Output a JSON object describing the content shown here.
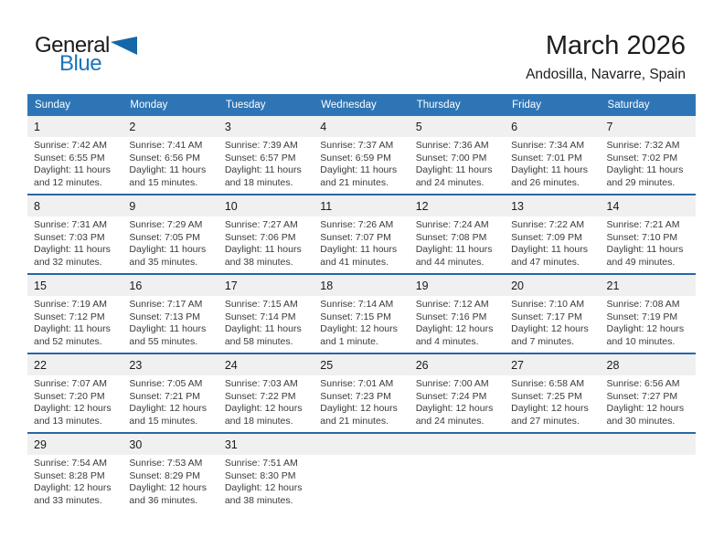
{
  "logo": {
    "general": "General",
    "blue": "Blue"
  },
  "header": {
    "title": "March 2026",
    "subtitle": "Andosilla, Navarre, Spain"
  },
  "colors": {
    "header_bar_blue": "#2e75b6",
    "week_separator_blue": "#2767a8",
    "day_band_gray": "#f0f0f0",
    "logo_blue": "#1b75bc",
    "logo_triangle_blue": "#1467a8"
  },
  "calendar": {
    "day_headers": [
      "Sunday",
      "Monday",
      "Tuesday",
      "Wednesday",
      "Thursday",
      "Friday",
      "Saturday"
    ],
    "weeks": [
      [
        {
          "day": "1",
          "sunrise": "Sunrise: 7:42 AM",
          "sunset": "Sunset: 6:55 PM",
          "daylight": "Daylight: 11 hours and 12 minutes."
        },
        {
          "day": "2",
          "sunrise": "Sunrise: 7:41 AM",
          "sunset": "Sunset: 6:56 PM",
          "daylight": "Daylight: 11 hours and 15 minutes."
        },
        {
          "day": "3",
          "sunrise": "Sunrise: 7:39 AM",
          "sunset": "Sunset: 6:57 PM",
          "daylight": "Daylight: 11 hours and 18 minutes."
        },
        {
          "day": "4",
          "sunrise": "Sunrise: 7:37 AM",
          "sunset": "Sunset: 6:59 PM",
          "daylight": "Daylight: 11 hours and 21 minutes."
        },
        {
          "day": "5",
          "sunrise": "Sunrise: 7:36 AM",
          "sunset": "Sunset: 7:00 PM",
          "daylight": "Daylight: 11 hours and 24 minutes."
        },
        {
          "day": "6",
          "sunrise": "Sunrise: 7:34 AM",
          "sunset": "Sunset: 7:01 PM",
          "daylight": "Daylight: 11 hours and 26 minutes."
        },
        {
          "day": "7",
          "sunrise": "Sunrise: 7:32 AM",
          "sunset": "Sunset: 7:02 PM",
          "daylight": "Daylight: 11 hours and 29 minutes."
        }
      ],
      [
        {
          "day": "8",
          "sunrise": "Sunrise: 7:31 AM",
          "sunset": "Sunset: 7:03 PM",
          "daylight": "Daylight: 11 hours and 32 minutes."
        },
        {
          "day": "9",
          "sunrise": "Sunrise: 7:29 AM",
          "sunset": "Sunset: 7:05 PM",
          "daylight": "Daylight: 11 hours and 35 minutes."
        },
        {
          "day": "10",
          "sunrise": "Sunrise: 7:27 AM",
          "sunset": "Sunset: 7:06 PM",
          "daylight": "Daylight: 11 hours and 38 minutes."
        },
        {
          "day": "11",
          "sunrise": "Sunrise: 7:26 AM",
          "sunset": "Sunset: 7:07 PM",
          "daylight": "Daylight: 11 hours and 41 minutes."
        },
        {
          "day": "12",
          "sunrise": "Sunrise: 7:24 AM",
          "sunset": "Sunset: 7:08 PM",
          "daylight": "Daylight: 11 hours and 44 minutes."
        },
        {
          "day": "13",
          "sunrise": "Sunrise: 7:22 AM",
          "sunset": "Sunset: 7:09 PM",
          "daylight": "Daylight: 11 hours and 47 minutes."
        },
        {
          "day": "14",
          "sunrise": "Sunrise: 7:21 AM",
          "sunset": "Sunset: 7:10 PM",
          "daylight": "Daylight: 11 hours and 49 minutes."
        }
      ],
      [
        {
          "day": "15",
          "sunrise": "Sunrise: 7:19 AM",
          "sunset": "Sunset: 7:12 PM",
          "daylight": "Daylight: 11 hours and 52 minutes."
        },
        {
          "day": "16",
          "sunrise": "Sunrise: 7:17 AM",
          "sunset": "Sunset: 7:13 PM",
          "daylight": "Daylight: 11 hours and 55 minutes."
        },
        {
          "day": "17",
          "sunrise": "Sunrise: 7:15 AM",
          "sunset": "Sunset: 7:14 PM",
          "daylight": "Daylight: 11 hours and 58 minutes."
        },
        {
          "day": "18",
          "sunrise": "Sunrise: 7:14 AM",
          "sunset": "Sunset: 7:15 PM",
          "daylight": "Daylight: 12 hours and 1 minute."
        },
        {
          "day": "19",
          "sunrise": "Sunrise: 7:12 AM",
          "sunset": "Sunset: 7:16 PM",
          "daylight": "Daylight: 12 hours and 4 minutes."
        },
        {
          "day": "20",
          "sunrise": "Sunrise: 7:10 AM",
          "sunset": "Sunset: 7:17 PM",
          "daylight": "Daylight: 12 hours and 7 minutes."
        },
        {
          "day": "21",
          "sunrise": "Sunrise: 7:08 AM",
          "sunset": "Sunset: 7:19 PM",
          "daylight": "Daylight: 12 hours and 10 minutes."
        }
      ],
      [
        {
          "day": "22",
          "sunrise": "Sunrise: 7:07 AM",
          "sunset": "Sunset: 7:20 PM",
          "daylight": "Daylight: 12 hours and 13 minutes."
        },
        {
          "day": "23",
          "sunrise": "Sunrise: 7:05 AM",
          "sunset": "Sunset: 7:21 PM",
          "daylight": "Daylight: 12 hours and 15 minutes."
        },
        {
          "day": "24",
          "sunrise": "Sunrise: 7:03 AM",
          "sunset": "Sunset: 7:22 PM",
          "daylight": "Daylight: 12 hours and 18 minutes."
        },
        {
          "day": "25",
          "sunrise": "Sunrise: 7:01 AM",
          "sunset": "Sunset: 7:23 PM",
          "daylight": "Daylight: 12 hours and 21 minutes."
        },
        {
          "day": "26",
          "sunrise": "Sunrise: 7:00 AM",
          "sunset": "Sunset: 7:24 PM",
          "daylight": "Daylight: 12 hours and 24 minutes."
        },
        {
          "day": "27",
          "sunrise": "Sunrise: 6:58 AM",
          "sunset": "Sunset: 7:25 PM",
          "daylight": "Daylight: 12 hours and 27 minutes."
        },
        {
          "day": "28",
          "sunrise": "Sunrise: 6:56 AM",
          "sunset": "Sunset: 7:27 PM",
          "daylight": "Daylight: 12 hours and 30 minutes."
        }
      ],
      [
        {
          "day": "29",
          "sunrise": "Sunrise: 7:54 AM",
          "sunset": "Sunset: 8:28 PM",
          "daylight": "Daylight: 12 hours and 33 minutes."
        },
        {
          "day": "30",
          "sunrise": "Sunrise: 7:53 AM",
          "sunset": "Sunset: 8:29 PM",
          "daylight": "Daylight: 12 hours and 36 minutes."
        },
        {
          "day": "31",
          "sunrise": "Sunrise: 7:51 AM",
          "sunset": "Sunset: 8:30 PM",
          "daylight": "Daylight: 12 hours and 38 minutes."
        }
      ]
    ]
  }
}
